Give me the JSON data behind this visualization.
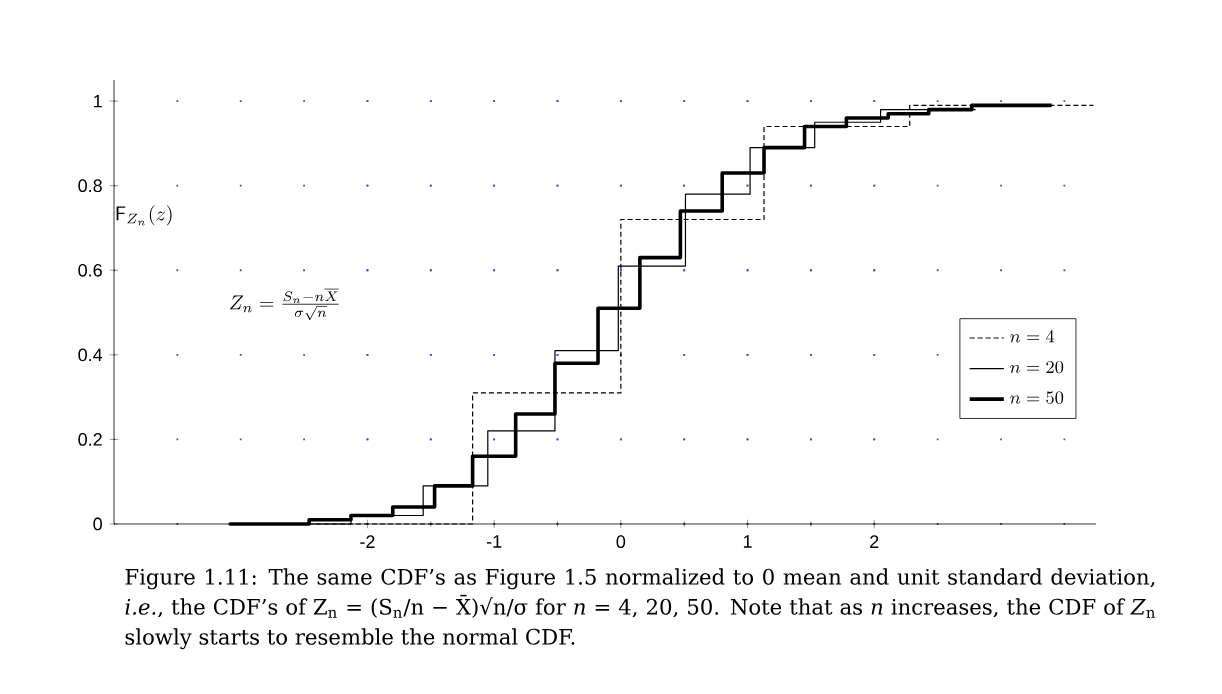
{
  "chart_data": {
    "type": "step",
    "ylabel": "\\mathsf{F}_{Z_n}(z)",
    "annotations": [
      "Z_n = \\frac{S_n - n\\overline{X}}{\\sigma\\sqrt{n}}",
      "Figure 1.11: The same CDF’s as Figure 1.5 normalized to 0 mean and unit standard deviation, *i.e.*, the CDF’s of Z$_{n}$ = (S$_{n}$/n − X̄)√n/σ for *n* = 4, 20, 50. Note that as *n* increases, the CDF of *Z*$_{n}$ slowly starts to resemble the normal CDF."
    ],
    "series": [
      {
        "name": "n = 4",
        "color": "#000000",
        "line_style": "dashed",
        "x": [
          -3.1,
          -1.17,
          0,
          1.13,
          2.28,
          3.73
        ],
        "values": [
          0,
          0.31,
          0.72,
          0.94,
          0.99,
          0.99
        ]
      },
      {
        "name": "n = 20",
        "color": "#000000",
        "line_style": "solid",
        "x": [
          -2.7,
          -2.13,
          -1.56,
          -1.05,
          -0.52,
          -0.02,
          0.51,
          1.02,
          1.53,
          2.05,
          2.8
        ],
        "values": [
          0,
          0.02,
          0.09,
          0.22,
          0.41,
          0.61,
          0.78,
          0.89,
          0.95,
          0.98,
          0.98
        ]
      },
      {
        "name": "n = 50",
        "color": "#000000",
        "line_style": "solid",
        "x": [
          -3.09,
          -2.46,
          -2.13,
          -1.8,
          -1.47,
          -1.17,
          -0.83,
          -0.52,
          -0.18,
          0.15,
          0.47,
          0.8,
          1.13,
          1.45,
          1.78,
          2.11,
          2.43,
          2.77,
          3.4
        ],
        "values": [
          0,
          0.01,
          0.02,
          0.04,
          0.09,
          0.16,
          0.26,
          0.38,
          0.51,
          0.63,
          0.74,
          0.83,
          0.89,
          0.94,
          0.96,
          0.97,
          0.98,
          0.99,
          0.99
        ]
      }
    ],
    "xlim": [
      -4,
      3.75
    ],
    "ylim": [
      0,
      1.05
    ],
    "xticks": [
      -2,
      -1,
      0,
      1,
      2
    ],
    "yticks": [
      0,
      0.2,
      0.4,
      0.6,
      0.8,
      1
    ],
    "grid": true,
    "legend": "right",
    "marker": "none"
  }
}
